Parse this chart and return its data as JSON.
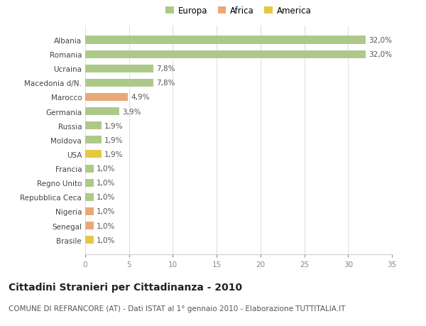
{
  "categories": [
    "Albania",
    "Romania",
    "Ucraina",
    "Macedonia d/N.",
    "Marocco",
    "Germania",
    "Russia",
    "Moldova",
    "USA",
    "Francia",
    "Regno Unito",
    "Repubblica Ceca",
    "Nigeria",
    "Senegal",
    "Brasile"
  ],
  "values": [
    32.0,
    32.0,
    7.8,
    7.8,
    4.9,
    3.9,
    1.9,
    1.9,
    1.9,
    1.0,
    1.0,
    1.0,
    1.0,
    1.0,
    1.0
  ],
  "labels": [
    "32,0%",
    "32,0%",
    "7,8%",
    "7,8%",
    "4,9%",
    "3,9%",
    "1,9%",
    "1,9%",
    "1,9%",
    "1,0%",
    "1,0%",
    "1,0%",
    "1,0%",
    "1,0%",
    "1,0%"
  ],
  "colors": [
    "#adc98a",
    "#adc98a",
    "#adc98a",
    "#adc98a",
    "#e8a878",
    "#adc98a",
    "#adc98a",
    "#adc98a",
    "#e8c840",
    "#adc98a",
    "#adc98a",
    "#adc98a",
    "#e8a878",
    "#e8a878",
    "#e8c840"
  ],
  "legend_colors": {
    "Europa": "#adc98a",
    "Africa": "#e8a878",
    "America": "#e8c840"
  },
  "title": "Cittadini Stranieri per Cittadinanza - 2010",
  "subtitle": "COMUNE DI REFRANCORE (AT) - Dati ISTAT al 1° gennaio 2010 - Elaborazione TUTTITALIA.IT",
  "xlim": [
    0,
    35
  ],
  "xticks": [
    0,
    5,
    10,
    15,
    20,
    25,
    30,
    35
  ],
  "bg_color": "#ffffff",
  "grid_color": "#e0e0e0",
  "bar_height": 0.55,
  "label_fontsize": 7.5,
  "tick_fontsize": 7.5,
  "title_fontsize": 10,
  "subtitle_fontsize": 7.5
}
